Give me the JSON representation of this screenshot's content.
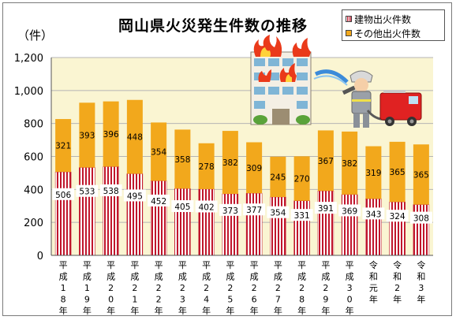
{
  "chart_data": {
    "type": "bar",
    "stacked": true,
    "title": "岡山県火災発生件数の推移",
    "y_unit": "（件）",
    "ylim": [
      0,
      1200
    ],
    "yticks": [
      "0",
      "200",
      "400",
      "600",
      "800",
      "1,000",
      "1,200"
    ],
    "grid": true,
    "legend_position": "top-right",
    "categories": [
      "平成18年",
      "平成19年",
      "平成20年",
      "平成21年",
      "平成22年",
      "平成23年",
      "平成24年",
      "平成25年",
      "平成26年",
      "平成27年",
      "平成28年",
      "平成29年",
      "平成30年",
      "令和元年",
      "令和2年",
      "令和3年"
    ],
    "series": [
      {
        "name": "建物出火件数",
        "color": "#c0162c",
        "values": [
          506,
          533,
          538,
          495,
          452,
          405,
          402,
          373,
          377,
          354,
          331,
          391,
          369,
          343,
          324,
          308
        ]
      },
      {
        "name": "その他出火件数",
        "color": "#f2a81c",
        "values": [
          321,
          393,
          396,
          448,
          354,
          358,
          278,
          382,
          309,
          245,
          270,
          367,
          382,
          319,
          365,
          365
        ]
      }
    ]
  },
  "legend": {
    "building": "建物出火件数",
    "other": "その他出火件数"
  },
  "colors": {
    "plot_background": "#faf5d2",
    "gridline": "#b5b5b5",
    "building": "#c0162c",
    "other": "#f2a81c"
  },
  "illustration": "firefighter-spraying-burning-building"
}
